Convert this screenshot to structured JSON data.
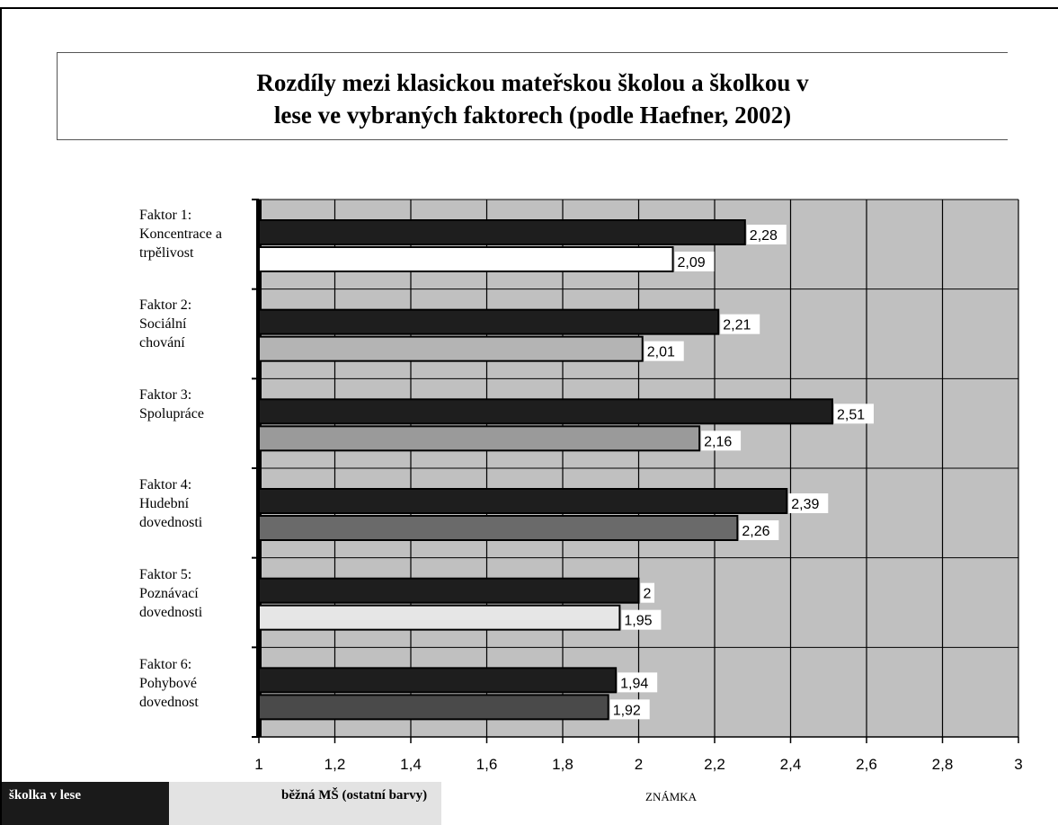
{
  "title": {
    "line1": "Rozdíly mezi klasickou mateřskou školou a školkou v",
    "line2": "lese ve vybraných faktorech (podle Haefner, 2002)"
  },
  "categories": [
    {
      "lines": [
        "Faktor 1:",
        "Koncentrace a",
        "trpělivost"
      ]
    },
    {
      "lines": [
        "Faktor 2:",
        "Sociální",
        "chování"
      ]
    },
    {
      "lines": [
        "Faktor 3:",
        "Spolupráce"
      ]
    },
    {
      "lines": [
        "Faktor 4:",
        "Hudební",
        "dovednosti"
      ]
    },
    {
      "lines": [
        "Faktor 5:",
        "Poznávací",
        "dovednosti"
      ]
    },
    {
      "lines": [
        "Faktor 6:",
        "Pohybové",
        "dovednost"
      ]
    }
  ],
  "legend": {
    "forest": "školka v lese",
    "regular": "běžná MŠ (ostatní barvy)"
  },
  "x_axis_label": "ZNÁMKA",
  "chart_data": {
    "type": "bar",
    "orientation": "horizontal",
    "title": "Rozdíly mezi klasickou mateřskou školou a školkou v lese ve vybraných faktorech (podle Haefner, 2002)",
    "xlabel": "ZNÁMKA",
    "xlim": [
      1,
      3
    ],
    "xticks": [
      1,
      1.2,
      1.4,
      1.6,
      1.8,
      2,
      2.2,
      2.4,
      2.6,
      2.8,
      3
    ],
    "tick_labels": [
      "1",
      "1,2",
      "1,4",
      "1,6",
      "1,8",
      "2",
      "2,2",
      "2,4",
      "2,6",
      "2,8",
      "3"
    ],
    "categories": [
      "Faktor 1: Koncentrace a trpělivost",
      "Faktor 2: Sociální chování",
      "Faktor 3: Spolupráce",
      "Faktor 4: Hudební dovednosti",
      "Faktor 5: Poznávací dovednosti",
      "Faktor 6: Pohybové dovednost"
    ],
    "series": [
      {
        "name": "školka v lese",
        "values": [
          2.28,
          2.21,
          2.51,
          2.39,
          2.0,
          1.94
        ],
        "labels": [
          "2,28",
          "2,21",
          "2,51",
          "2,39",
          "2",
          "1,94"
        ],
        "color": "#1e1e1e"
      },
      {
        "name": "běžná MŠ (ostatní barvy)",
        "values": [
          2.09,
          2.01,
          2.16,
          2.26,
          1.95,
          1.92
        ],
        "labels": [
          "2,09",
          "2,01",
          "2,16",
          "2,26",
          "1,95",
          "1,92"
        ],
        "colors": [
          "#ffffff",
          "#b4b4b4",
          "#9a9a9a",
          "#6a6a6a",
          "#e6e6e6",
          "#4a4a4a"
        ]
      }
    ],
    "plot_background": "#c0c0c0",
    "grid": true,
    "legend_position": "bottom-left"
  }
}
